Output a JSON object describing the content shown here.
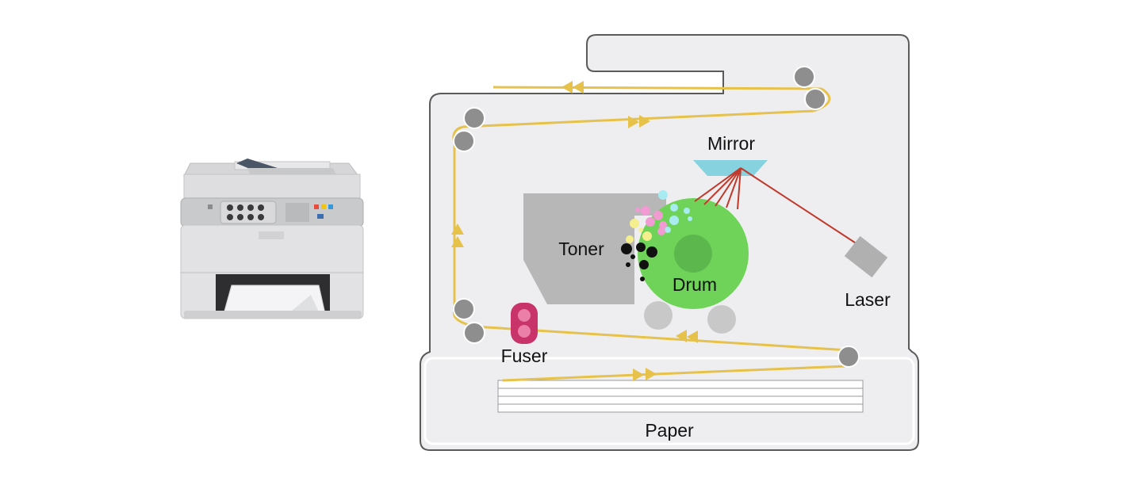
{
  "labels": {
    "mirror": "Mirror",
    "toner": "Toner",
    "drum": "Drum",
    "laser": "Laser",
    "fuser": "Fuser",
    "paper": "Paper"
  },
  "colors": {
    "paper_path": "#e6c24a",
    "housing": "#eeeef0",
    "outline": "#5a5a5a",
    "roller": "#8e8e8e",
    "drum": "#6fd35a",
    "drum_core": "#5cb84c",
    "toner_box": "#b7b7b7",
    "mirror": "#86d3df",
    "laser_beam": "#c0392b",
    "fuser": "#c8336a",
    "fuser_dot": "#ea7fa8"
  },
  "icons": {
    "printer": "office-printer-icon"
  }
}
